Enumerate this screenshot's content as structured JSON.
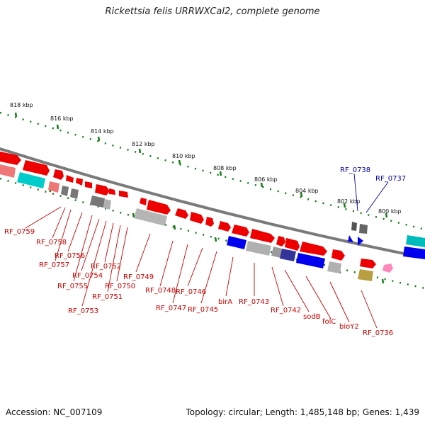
{
  "title": "Rickettsia felis URRWXCal2, complete genome",
  "footer": {
    "accession": "Accession: NC_007109",
    "summary": "Topology: circular; Length: 1,485,148 bp; Genes: 1,439"
  },
  "scale_labels": [
    "818 kbp",
    "816 kbp",
    "814 kbp",
    "812 kbp",
    "810 kbp",
    "808 kbp",
    "806 kbp",
    "804 kbp",
    "802 kbp",
    "800 kbp"
  ],
  "gene_labels": [
    "RF_0759",
    "RF_0758",
    "RF_0757",
    "RF_0756",
    "RF_0755",
    "RF_0754",
    "RF_0753",
    "RF_0752",
    "RF_0751",
    "RF_0750",
    "RF_0749",
    "RF_0748",
    "RF_0747",
    "RF_0746",
    "RF_0745",
    "birA",
    "RF_0743",
    "RF_0742",
    "sodB",
    "folC",
    "bioY2",
    "RF_0736",
    "RF_0738",
    "RF_0737"
  ],
  "colors": {
    "backbone": "#808080",
    "scale_ticks": "#1a7a1a",
    "label_red": "#cc0000",
    "label_blue": "#0000aa",
    "gene_red": "#ee0000",
    "gene_gray": "#a0a0a0",
    "gene_cyan": "#00cccc",
    "gene_blue": "#0000ee",
    "gene_pink": "#ff99cc",
    "gene_olive": "#b8a040"
  }
}
